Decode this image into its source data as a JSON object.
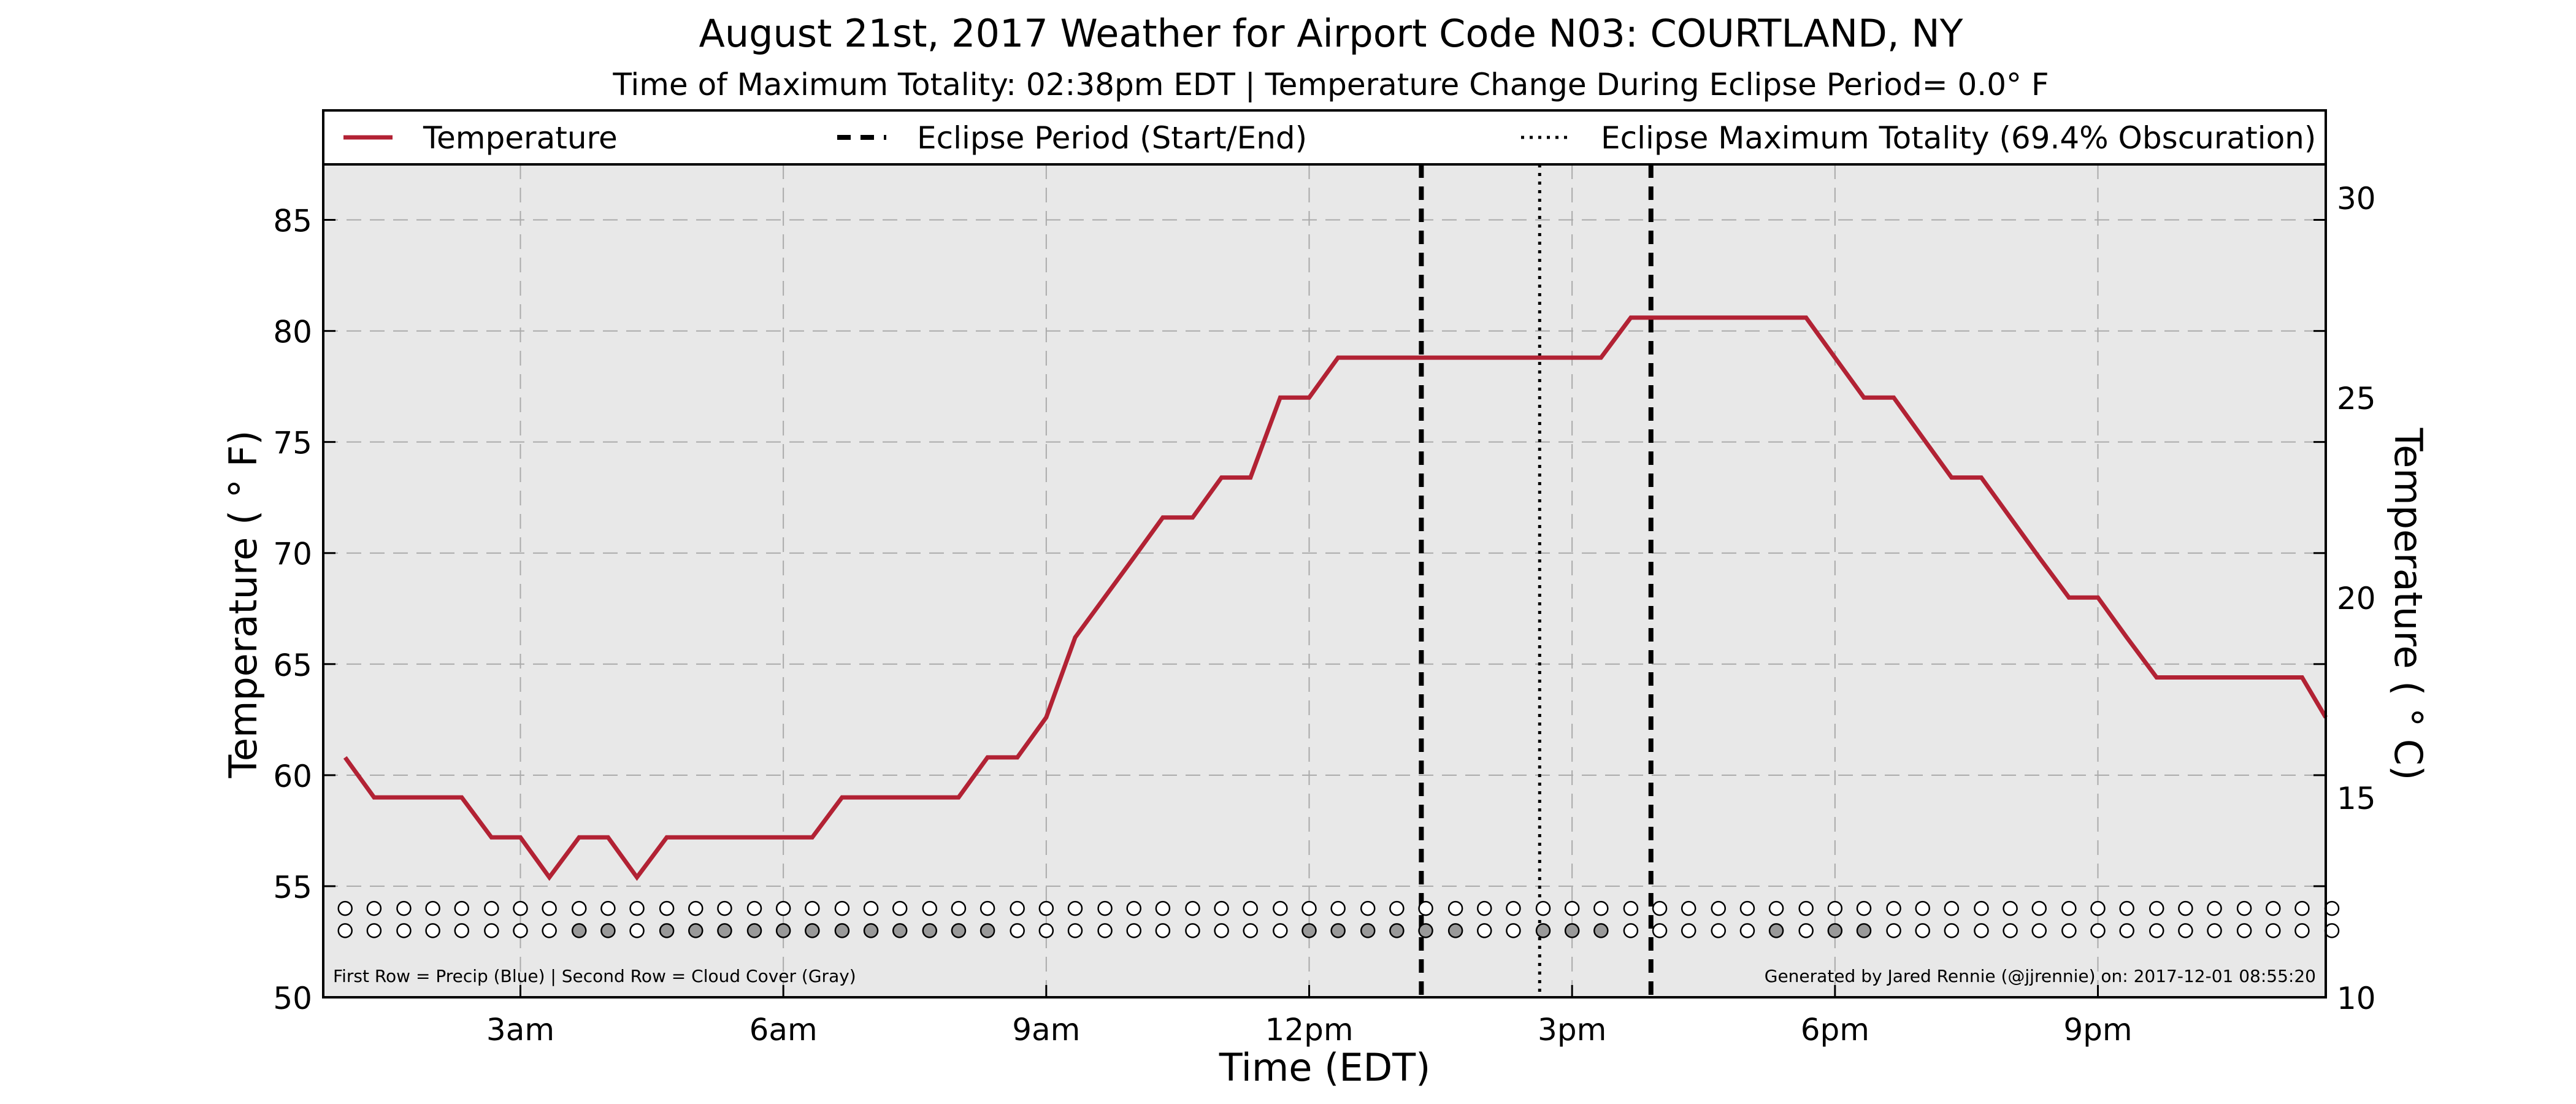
{
  "chart_data": {
    "type": "line",
    "title": "August 21st, 2017 Weather for Airport Code N03: COURTLAND, NY",
    "subtitle": "Time of Maximum Totality: 02:38pm EDT | Temperature Change During Eclipse Period= 0.0$^\\circ$F",
    "subtitle_display": "Time of Maximum Totality: 02:38pm EDT | Temperature Change During Eclipse Period= 0.0° F",
    "xlabel": "Time (EDT)",
    "ylabel": "Temperature ( ° F)",
    "ylabel_right": "Temperature ( ° C)",
    "xlim": [
      0.75,
      23.6
    ],
    "ylim": [
      50,
      87.5
    ],
    "ylim_right": [
      10,
      30.83
    ],
    "xticks": [
      {
        "x": 3,
        "label": "3am"
      },
      {
        "x": 6,
        "label": "6am"
      },
      {
        "x": 9,
        "label": "9am"
      },
      {
        "x": 12,
        "label": "12pm"
      },
      {
        "x": 15,
        "label": "3pm"
      },
      {
        "x": 18,
        "label": "6pm"
      },
      {
        "x": 21,
        "label": "9pm"
      }
    ],
    "yticks": [
      50,
      55,
      60,
      65,
      70,
      75,
      80,
      85
    ],
    "yticks_right": [
      10,
      15,
      20,
      25,
      30
    ],
    "grid": true,
    "legend": {
      "placement": "top",
      "entries": [
        {
          "label": "Temperature",
          "style": "solid",
          "color": "#b22234"
        },
        {
          "label": "Eclipse Period (Start/End)",
          "style": "dashed",
          "color": "#000000"
        },
        {
          "label": "Eclipse Maximum Totality (69.4% Obscuration)",
          "style": "dotted",
          "color": "#000000"
        }
      ]
    },
    "series": [
      {
        "name": "Temperature",
        "color": "#b22234",
        "x": [
          1.0,
          1.33,
          2.33,
          2.67,
          3.0,
          3.33,
          3.67,
          4.0,
          4.33,
          4.67,
          5.0,
          5.33,
          6.33,
          6.67,
          7.0,
          8.0,
          8.33,
          8.67,
          9.0,
          9.33,
          10.0,
          10.33,
          10.67,
          11.0,
          11.33,
          11.67,
          12.0,
          12.33,
          13.0,
          14.0,
          15.0,
          15.33,
          15.67,
          16.0,
          16.67,
          17.0,
          17.67,
          18.0,
          18.33,
          18.67,
          19.0,
          19.33,
          19.67,
          20.0,
          20.33,
          20.67,
          21.0,
          21.33,
          21.67,
          22.0,
          22.33,
          22.67,
          23.0,
          23.33,
          23.67,
          24.0
        ],
        "y": [
          60.8,
          59.0,
          59.0,
          57.2,
          57.2,
          55.4,
          57.2,
          57.2,
          55.4,
          57.2,
          57.2,
          57.2,
          57.2,
          59.0,
          59.0,
          59.0,
          60.8,
          60.8,
          62.6,
          66.2,
          69.8,
          71.6,
          71.6,
          73.4,
          73.4,
          77.0,
          77.0,
          78.8,
          78.8,
          78.8,
          78.8,
          78.8,
          80.6,
          80.6,
          80.6,
          80.6,
          80.6,
          78.8,
          77.0,
          77.0,
          75.2,
          73.4,
          73.4,
          71.6,
          69.8,
          68.0,
          68.0,
          66.2,
          64.4,
          64.4,
          64.4,
          64.4,
          64.4,
          64.4,
          62.6,
          62.6
        ]
      }
    ],
    "eclipse": {
      "start_x": 13.28,
      "max_x": 14.63,
      "end_x": 15.9,
      "obscuration": "69.4%"
    },
    "markers": {
      "times": [
        1.0,
        1.33,
        1.67,
        2.0,
        2.33,
        2.67,
        3.0,
        3.33,
        3.67,
        4.0,
        4.33,
        4.67,
        5.0,
        5.33,
        5.67,
        6.0,
        6.33,
        6.67,
        7.0,
        7.33,
        7.67,
        8.0,
        8.33,
        8.67,
        9.0,
        9.33,
        9.67,
        10.0,
        10.33,
        10.67,
        11.0,
        11.33,
        11.67,
        12.0,
        12.33,
        12.67,
        13.0,
        13.33,
        13.67,
        14.0,
        14.33,
        14.67,
        15.0,
        15.33,
        15.67,
        16.0,
        16.33,
        16.67,
        17.0,
        17.33,
        17.67,
        18.0,
        18.33,
        18.67,
        19.0,
        19.33,
        19.67,
        20.0,
        20.33,
        20.67,
        21.0,
        21.33,
        21.67,
        22.0,
        22.33,
        22.67,
        23.0,
        23.33,
        23.67
      ],
      "precip_y": 54,
      "cloud_y": 53,
      "precip": [
        0,
        0,
        0,
        0,
        0,
        0,
        0,
        0,
        0,
        0,
        0,
        0,
        0,
        0,
        0,
        0,
        0,
        0,
        0,
        0,
        0,
        0,
        0,
        0,
        0,
        0,
        0,
        0,
        0,
        0,
        0,
        0,
        0,
        0,
        0,
        0,
        0,
        0,
        0,
        0,
        0,
        0,
        0,
        0,
        0,
        0,
        0,
        0,
        0,
        0,
        0,
        0,
        0,
        0,
        0,
        0,
        0,
        0,
        0,
        0,
        0,
        0,
        0,
        0,
        0,
        0,
        0,
        0,
        0
      ],
      "cloud": [
        0,
        0,
        0,
        0,
        0,
        0,
        0,
        0,
        1,
        1,
        0,
        1,
        1,
        1,
        1,
        1,
        1,
        1,
        1,
        1,
        1,
        1,
        1,
        0,
        0,
        0,
        0,
        0,
        0,
        0,
        0,
        0,
        0,
        1,
        1,
        1,
        1,
        1,
        1,
        0,
        0,
        1,
        1,
        1,
        0,
        0,
        0,
        0,
        0,
        1,
        0,
        1,
        1,
        0,
        0,
        0,
        0,
        0,
        0,
        0,
        0,
        0,
        0,
        0,
        0,
        0,
        0,
        0,
        0
      ],
      "colors": {
        "empty": "#ffffff",
        "cloud": "#999999",
        "precip": "#3f6fbf"
      }
    },
    "notes": {
      "left": "First Row = Precip (Blue) | Second Row = Cloud Cover (Gray)",
      "right": "Generated by Jared Rennie (@jjrennie) on: 2017-12-01 08:55:20"
    },
    "colors": {
      "plot_bg": "#e8e8e8",
      "grid": "#aaaaaa",
      "temperature": "#b22234"
    }
  }
}
